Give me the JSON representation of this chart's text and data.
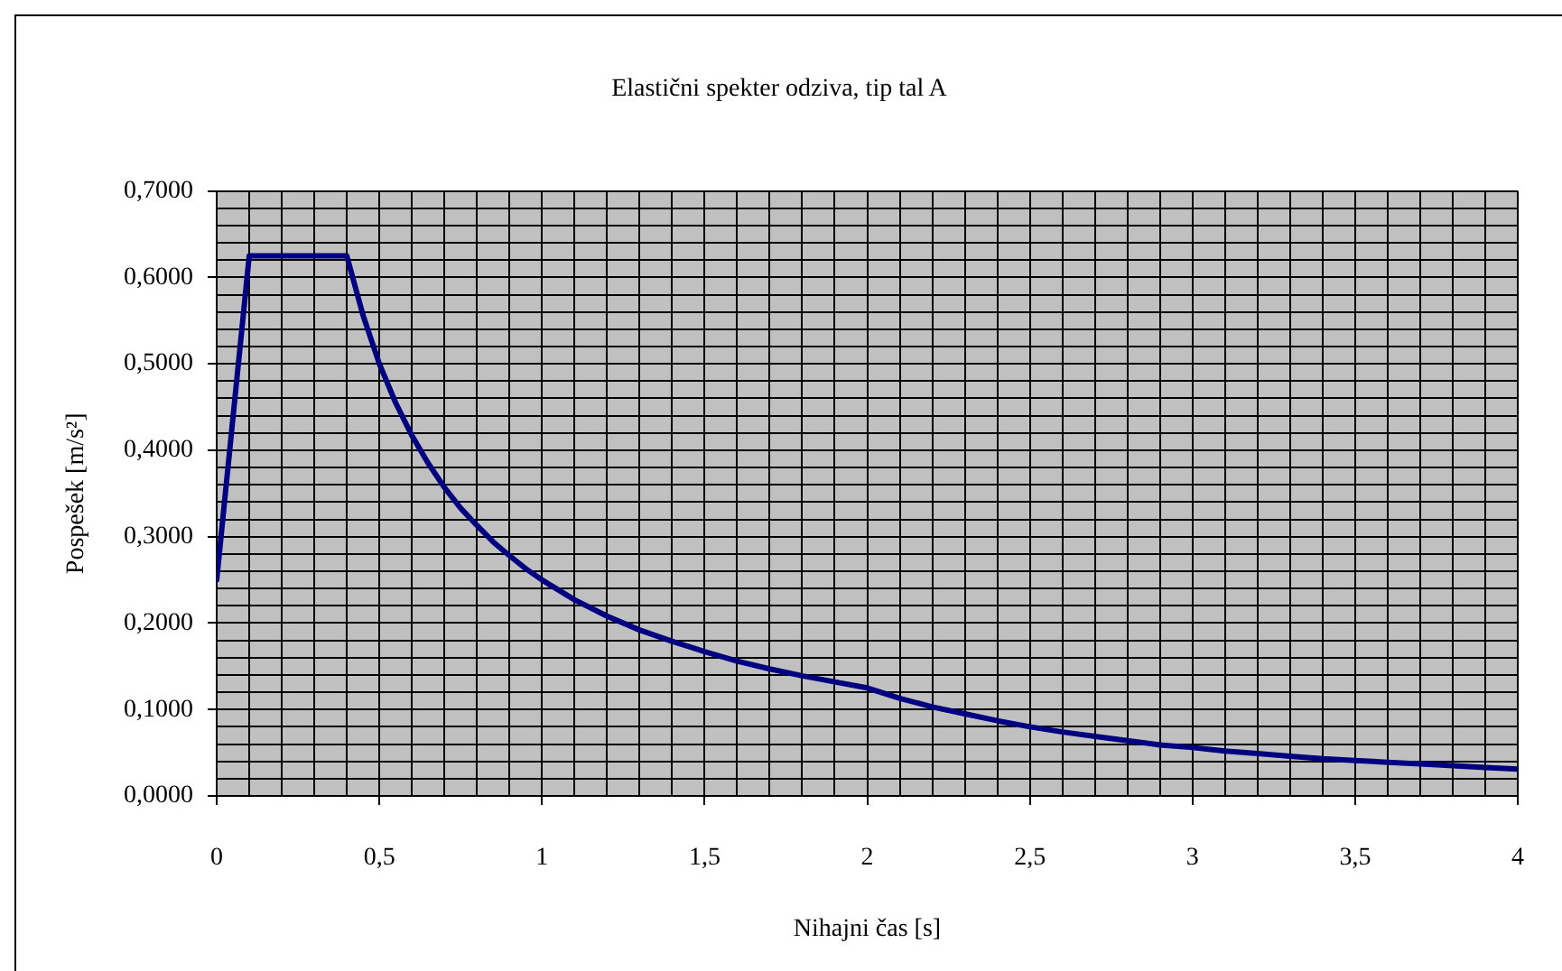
{
  "chart_data": {
    "type": "line",
    "title": "Elastični spekter odziva, tip tal A",
    "xlabel": "Nihajni čas [s]",
    "ylabel": "Pospešek [m/s²]",
    "x": [
      0,
      0.1,
      0.4,
      0.45,
      0.5,
      0.55,
      0.6,
      0.65,
      0.7,
      0.75,
      0.8,
      0.85,
      0.9,
      0.95,
      1.0,
      1.1,
      1.2,
      1.3,
      1.4,
      1.5,
      1.6,
      1.7,
      1.8,
      1.9,
      2.0,
      2.1,
      2.2,
      2.3,
      2.4,
      2.5,
      2.6,
      2.7,
      2.8,
      2.9,
      3.0,
      3.1,
      3.2,
      3.3,
      3.4,
      3.5,
      3.6,
      3.7,
      3.8,
      3.9,
      4.0
    ],
    "series": [
      {
        "color": "#000080",
        "values": [
          0.25,
          0.625,
          0.625,
          0.556,
          0.5,
          0.455,
          0.417,
          0.385,
          0.357,
          0.333,
          0.313,
          0.294,
          0.278,
          0.263,
          0.25,
          0.227,
          0.208,
          0.192,
          0.179,
          0.167,
          0.156,
          0.147,
          0.139,
          0.132,
          0.125,
          0.113,
          0.103,
          0.095,
          0.087,
          0.08,
          0.074,
          0.069,
          0.064,
          0.059,
          0.056,
          0.052,
          0.049,
          0.046,
          0.043,
          0.041,
          0.039,
          0.037,
          0.035,
          0.033,
          0.031
        ]
      }
    ],
    "xlim": [
      0,
      4
    ],
    "ylim": [
      0,
      0.7
    ],
    "xticks": [
      0,
      {
        "value": 0.1,
        "label": null
      },
      {
        "value": 0.2,
        "label": null
      },
      {
        "value": 0.3,
        "label": null
      },
      {
        "value": 0.4,
        "label": null
      },
      {
        "value": 0.5,
        "label": "0,5"
      },
      {
        "value": 0.6,
        "label": null
      },
      {
        "value": 0.7,
        "label": null
      },
      {
        "value": 0.8,
        "label": null
      },
      {
        "value": 0.9,
        "label": null
      },
      1,
      {
        "value": 1.1,
        "label": null
      },
      {
        "value": 1.2,
        "label": null
      },
      {
        "value": 1.3,
        "label": null
      },
      {
        "value": 1.4,
        "label": null
      },
      {
        "value": 1.5,
        "label": "1,5"
      },
      {
        "value": 1.6,
        "label": null
      },
      {
        "value": 1.7,
        "label": null
      },
      {
        "value": 1.8,
        "label": null
      },
      {
        "value": 1.9,
        "label": null
      },
      2,
      {
        "value": 2.1,
        "label": null
      },
      {
        "value": 2.2,
        "label": null
      },
      {
        "value": 2.3,
        "label": null
      },
      {
        "value": 2.4,
        "label": null
      },
      {
        "value": 2.5,
        "label": "2,5"
      },
      {
        "value": 2.6,
        "label": null
      },
      {
        "value": 2.7,
        "label": null
      },
      {
        "value": 2.8,
        "label": null
      },
      {
        "value": 2.9,
        "label": null
      },
      3,
      {
        "value": 3.1,
        "label": null
      },
      {
        "value": 3.2,
        "label": null
      },
      {
        "value": 3.3,
        "label": null
      },
      {
        "value": 3.4,
        "label": null
      },
      {
        "value": 3.5,
        "label": "3,5"
      },
      {
        "value": 3.6,
        "label": null
      },
      {
        "value": 3.7,
        "label": null
      },
      {
        "value": 3.8,
        "label": null
      },
      {
        "value": 3.9,
        "label": null
      },
      4
    ],
    "yticks": [
      {
        "value": 0,
        "label": "0,0000"
      },
      {
        "value": 0.02,
        "label": null
      },
      {
        "value": 0.04,
        "label": null
      },
      {
        "value": 0.06,
        "label": null
      },
      {
        "value": 0.08,
        "label": null
      },
      {
        "value": 0.1,
        "label": "0,1000"
      },
      {
        "value": 0.12,
        "label": null
      },
      {
        "value": 0.14,
        "label": null
      },
      {
        "value": 0.16,
        "label": null
      },
      {
        "value": 0.18,
        "label": null
      },
      {
        "value": 0.2,
        "label": "0,2000"
      },
      {
        "value": 0.22,
        "label": null
      },
      {
        "value": 0.24,
        "label": null
      },
      {
        "value": 0.26,
        "label": null
      },
      {
        "value": 0.28,
        "label": null
      },
      {
        "value": 0.3,
        "label": "0,3000"
      },
      {
        "value": 0.32,
        "label": null
      },
      {
        "value": 0.34,
        "label": null
      },
      {
        "value": 0.36,
        "label": null
      },
      {
        "value": 0.38,
        "label": null
      },
      {
        "value": 0.4,
        "label": "0,4000"
      },
      {
        "value": 0.42,
        "label": null
      },
      {
        "value": 0.44,
        "label": null
      },
      {
        "value": 0.46,
        "label": null
      },
      {
        "value": 0.48,
        "label": null
      },
      {
        "value": 0.5,
        "label": "0,5000"
      },
      {
        "value": 0.52,
        "label": null
      },
      {
        "value": 0.54,
        "label": null
      },
      {
        "value": 0.56,
        "label": null
      },
      {
        "value": 0.58,
        "label": null
      },
      {
        "value": 0.6,
        "label": "0,6000"
      },
      {
        "value": 0.62,
        "label": null
      },
      {
        "value": 0.64,
        "label": null
      },
      {
        "value": 0.66,
        "label": null
      },
      {
        "value": 0.68,
        "label": null
      },
      {
        "value": 0.7,
        "label": "0,7000"
      }
    ],
    "grid": true,
    "marker": "none",
    "line_style": "solid"
  }
}
